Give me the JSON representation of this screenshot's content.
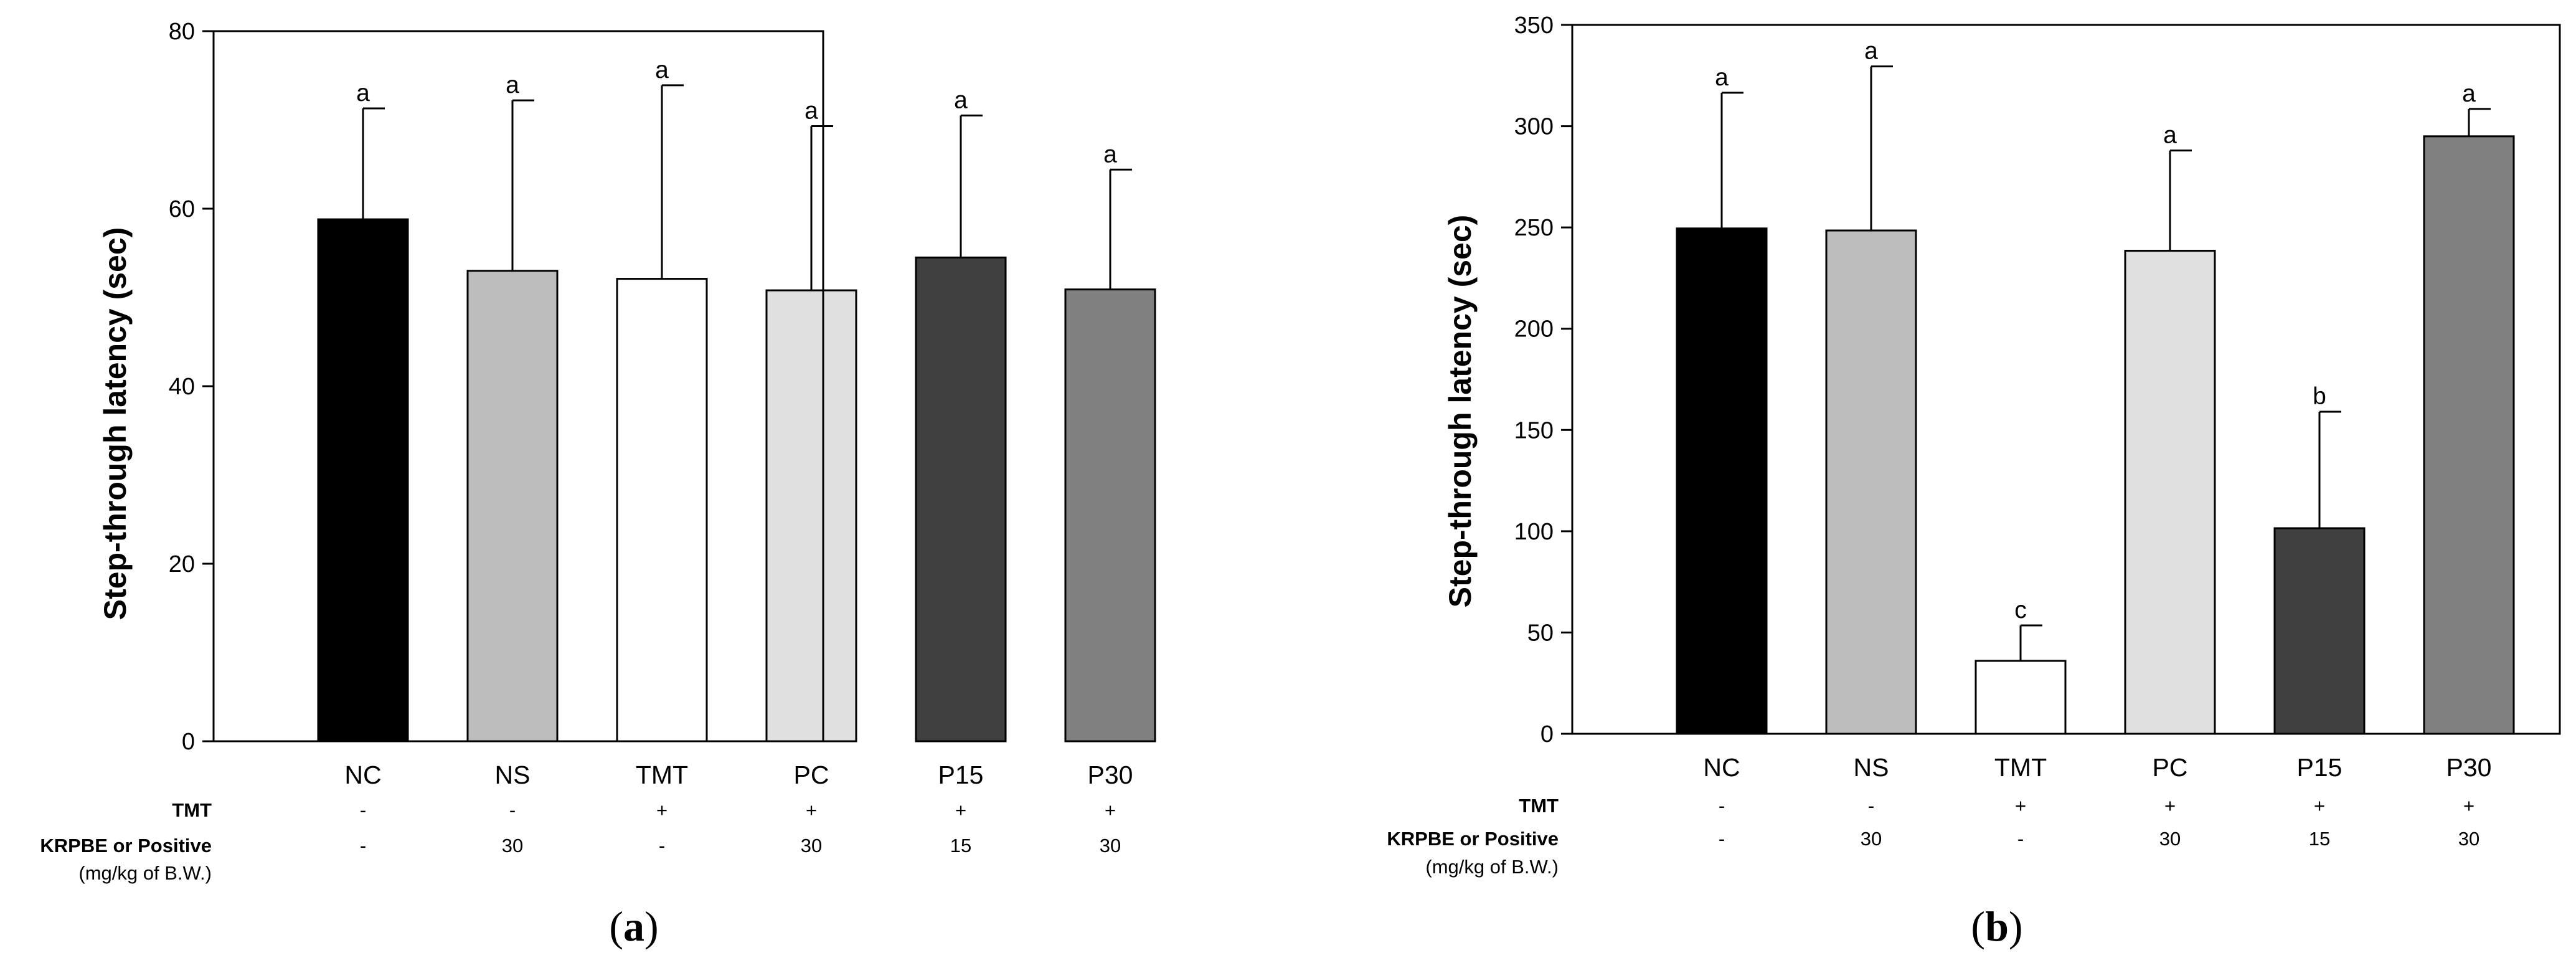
{
  "chart_data": [
    {
      "type": "bar",
      "panel_label": "a",
      "categories": [
        "NC",
        "NS",
        "TMT",
        "PC",
        "P15",
        "P30"
      ],
      "values": [
        58.8,
        53.0,
        52.1,
        50.8,
        54.5,
        50.9
      ],
      "error_upper": [
        71.3,
        72.2,
        73.9,
        69.3,
        70.5,
        64.4
      ],
      "significance": [
        "a",
        "a",
        "a",
        "a",
        "a",
        "a"
      ],
      "bar_colors": [
        "#000000",
        "#bdbdbd",
        "#ffffff",
        "#e0e0e0",
        "#404040",
        "#808080"
      ],
      "ylabel": "Step-through latency (sec)",
      "xlabel": "",
      "ylim": [
        0,
        80
      ],
      "yticks": [
        0,
        20,
        40,
        60,
        80
      ],
      "treatment_rows": [
        {
          "label": "TMT",
          "sublabel": "",
          "values": [
            "-",
            "-",
            "+",
            "+",
            "+",
            "+"
          ]
        },
        {
          "label": "KRPBE or Positive",
          "sublabel": "(mg/kg of B.W.)",
          "values": [
            "-",
            "30",
            "-",
            "30",
            "15",
            "30"
          ]
        }
      ]
    },
    {
      "type": "bar",
      "panel_label": "b",
      "categories": [
        "NC",
        "NS",
        "TMT",
        "PC",
        "P15",
        "P30"
      ],
      "values": [
        249.5,
        248.5,
        36.0,
        238.5,
        101.5,
        295.0
      ],
      "error_upper": [
        316.5,
        329.5,
        53.5,
        288.0,
        159.0,
        308.5
      ],
      "significance": [
        "a",
        "a",
        "c",
        "a",
        "b",
        "a"
      ],
      "bar_colors": [
        "#000000",
        "#bdbdbd",
        "#ffffff",
        "#e0e0e0",
        "#404040",
        "#808080"
      ],
      "ylabel": "Step-through latency (sec)",
      "xlabel": "",
      "ylim": [
        0,
        350
      ],
      "yticks": [
        0,
        50,
        100,
        150,
        200,
        250,
        300,
        350
      ],
      "treatment_rows": [
        {
          "label": "TMT",
          "sublabel": "",
          "values": [
            "-",
            "-",
            "+",
            "+",
            "+",
            "+"
          ]
        },
        {
          "label": "KRPBE or Positive",
          "sublabel": "(mg/kg of B.W.)",
          "values": [
            "-",
            "30",
            "-",
            "30",
            "15",
            "30"
          ]
        }
      ]
    }
  ]
}
